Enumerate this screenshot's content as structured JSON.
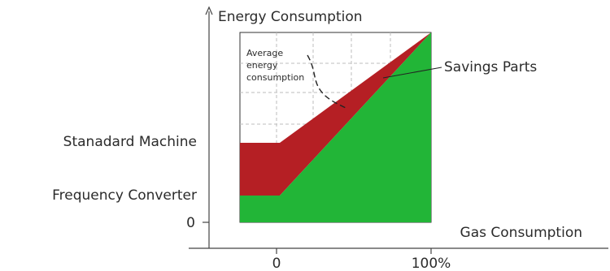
{
  "y_axis": {
    "title": "Energy Consumption"
  },
  "x_axis": {
    "title": "Gas Consumption",
    "ticks": [
      "0",
      "100%"
    ]
  },
  "y_labels": {
    "standard": "Stanadard Machine",
    "converter": "Frequency Converter",
    "zero": "0"
  },
  "annotations": {
    "average_energy": [
      "Average",
      "energy",
      "consumption"
    ],
    "savings": "Savings Parts"
  },
  "colors": {
    "savings_fill": "#b51f24",
    "converter_fill": "#22b537",
    "grid": "#bdbdbd",
    "axis": "#444444"
  }
}
